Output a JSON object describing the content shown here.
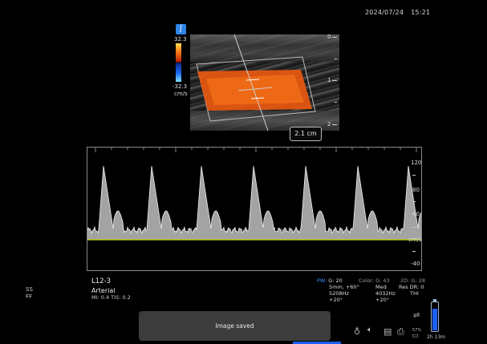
{
  "status": {
    "date": "2024/07/24",
    "time": "15:21"
  },
  "color_bar": {
    "max": "32.3",
    "min": "-32.3",
    "unit": "cm/s"
  },
  "depth_scale": [
    "0",
    "1",
    "2"
  ],
  "measurement": {
    "label": "2.1 cm"
  },
  "doppler_scale": {
    "labels": [
      "120",
      "80",
      "40",
      "cm/s",
      "-40"
    ],
    "baseline_color": "#c8d400"
  },
  "left_markers": {
    "ss": "SS",
    "ff": "FF"
  },
  "probe": {
    "name": "L12-3",
    "preset": "Arterial",
    "mi_tis": "MI: 0.4 TIS: 0.2"
  },
  "params": {
    "pw": {
      "key": "PW:",
      "lines": [
        "G: 20",
        "5mm, +60°",
        "5208Hz",
        "+20°"
      ]
    },
    "color": {
      "key": "Color:",
      "lines": [
        "G: 43",
        "Med",
        "4032Hz",
        "+20°"
      ]
    },
    "twod": {
      "key": "2D:",
      "lines": [
        "G: 28",
        "Res DR: 0",
        "THI"
      ]
    }
  },
  "toast": {
    "message": "Image saved"
  },
  "bottom_icons": [
    "stethoscope-icon",
    "speaker-icon",
    "report-icon",
    "print-icon",
    "printer-icon",
    "usb-icon"
  ],
  "printer_status": "57%",
  "battery": {
    "remaining": "2h 13m",
    "level_percent": 80,
    "color": "#1e5fff"
  }
}
